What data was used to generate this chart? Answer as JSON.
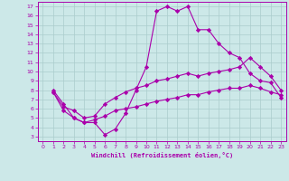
{
  "xlabel": "Windchill (Refroidissement éolien,°C)",
  "xlim": [
    -0.5,
    23.5
  ],
  "ylim": [
    2.5,
    17.5
  ],
  "xticks": [
    0,
    1,
    2,
    3,
    4,
    5,
    6,
    7,
    8,
    9,
    10,
    11,
    12,
    13,
    14,
    15,
    16,
    17,
    18,
    19,
    20,
    21,
    22,
    23
  ],
  "yticks": [
    3,
    4,
    5,
    6,
    7,
    8,
    9,
    10,
    11,
    12,
    13,
    14,
    15,
    16,
    17
  ],
  "line_color": "#aa00aa",
  "bg_color": "#cce8e8",
  "grid_color": "#aacccc",
  "line1_x": [
    1,
    2,
    3,
    4,
    5,
    6,
    7,
    8,
    9,
    10,
    11,
    12,
    13,
    14,
    15,
    16,
    17,
    18,
    19,
    20,
    21,
    22,
    23
  ],
  "line1_y": [
    8.0,
    6.5,
    5.0,
    4.5,
    4.5,
    3.2,
    3.8,
    5.5,
    8.0,
    10.5,
    16.5,
    17.0,
    16.5,
    17.0,
    14.5,
    14.5,
    13.0,
    12.0,
    11.5,
    9.8,
    9.0,
    8.8,
    7.2
  ],
  "line2_x": [
    1,
    2,
    3,
    4,
    5,
    6,
    7,
    8,
    9,
    10,
    11,
    12,
    13,
    14,
    15,
    16,
    17,
    18,
    19,
    20,
    21,
    22,
    23
  ],
  "line2_y": [
    7.8,
    6.2,
    5.8,
    5.0,
    5.2,
    6.5,
    7.2,
    7.8,
    8.2,
    8.5,
    9.0,
    9.2,
    9.5,
    9.8,
    9.5,
    9.8,
    10.0,
    10.2,
    10.5,
    11.5,
    10.5,
    9.5,
    8.0
  ],
  "line3_x": [
    1,
    2,
    3,
    4,
    5,
    6,
    7,
    8,
    9,
    10,
    11,
    12,
    13,
    14,
    15,
    16,
    17,
    18,
    19,
    20,
    21,
    22,
    23
  ],
  "line3_y": [
    7.8,
    5.8,
    5.0,
    4.5,
    4.8,
    5.2,
    5.8,
    6.0,
    6.2,
    6.5,
    6.8,
    7.0,
    7.2,
    7.5,
    7.5,
    7.8,
    8.0,
    8.2,
    8.2,
    8.5,
    8.2,
    7.8,
    7.5
  ]
}
